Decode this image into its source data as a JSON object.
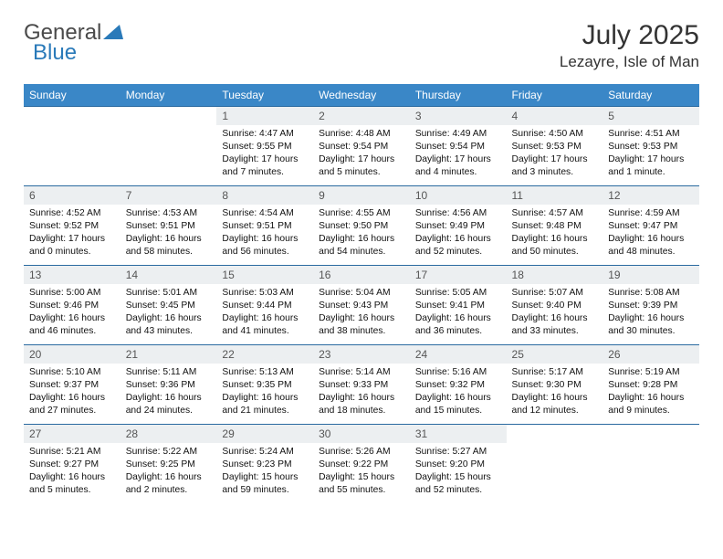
{
  "logo": {
    "word1": "General",
    "word2": "Blue",
    "brand_color": "#2a7ab9",
    "text_color": "#4a4a4a"
  },
  "title": "July 2025",
  "location": "Lezayre, Isle of Man",
  "header_bg": "#3a87c7",
  "header_fg": "#ffffff",
  "daynum_bg": "#eceff1",
  "week_border": "#2a6aa0",
  "fonts": {
    "title_size": 30,
    "location_size": 17,
    "header_size": 12,
    "daynum_size": 12,
    "body_size": 10.3
  },
  "columns": [
    "Sunday",
    "Monday",
    "Tuesday",
    "Wednesday",
    "Thursday",
    "Friday",
    "Saturday"
  ],
  "weeks": [
    [
      null,
      null,
      {
        "n": "1",
        "sunrise": "4:47 AM",
        "sunset": "9:55 PM",
        "daylight": "17 hours and 7 minutes."
      },
      {
        "n": "2",
        "sunrise": "4:48 AM",
        "sunset": "9:54 PM",
        "daylight": "17 hours and 5 minutes."
      },
      {
        "n": "3",
        "sunrise": "4:49 AM",
        "sunset": "9:54 PM",
        "daylight": "17 hours and 4 minutes."
      },
      {
        "n": "4",
        "sunrise": "4:50 AM",
        "sunset": "9:53 PM",
        "daylight": "17 hours and 3 minutes."
      },
      {
        "n": "5",
        "sunrise": "4:51 AM",
        "sunset": "9:53 PM",
        "daylight": "17 hours and 1 minute."
      }
    ],
    [
      {
        "n": "6",
        "sunrise": "4:52 AM",
        "sunset": "9:52 PM",
        "daylight": "17 hours and 0 minutes."
      },
      {
        "n": "7",
        "sunrise": "4:53 AM",
        "sunset": "9:51 PM",
        "daylight": "16 hours and 58 minutes."
      },
      {
        "n": "8",
        "sunrise": "4:54 AM",
        "sunset": "9:51 PM",
        "daylight": "16 hours and 56 minutes."
      },
      {
        "n": "9",
        "sunrise": "4:55 AM",
        "sunset": "9:50 PM",
        "daylight": "16 hours and 54 minutes."
      },
      {
        "n": "10",
        "sunrise": "4:56 AM",
        "sunset": "9:49 PM",
        "daylight": "16 hours and 52 minutes."
      },
      {
        "n": "11",
        "sunrise": "4:57 AM",
        "sunset": "9:48 PM",
        "daylight": "16 hours and 50 minutes."
      },
      {
        "n": "12",
        "sunrise": "4:59 AM",
        "sunset": "9:47 PM",
        "daylight": "16 hours and 48 minutes."
      }
    ],
    [
      {
        "n": "13",
        "sunrise": "5:00 AM",
        "sunset": "9:46 PM",
        "daylight": "16 hours and 46 minutes."
      },
      {
        "n": "14",
        "sunrise": "5:01 AM",
        "sunset": "9:45 PM",
        "daylight": "16 hours and 43 minutes."
      },
      {
        "n": "15",
        "sunrise": "5:03 AM",
        "sunset": "9:44 PM",
        "daylight": "16 hours and 41 minutes."
      },
      {
        "n": "16",
        "sunrise": "5:04 AM",
        "sunset": "9:43 PM",
        "daylight": "16 hours and 38 minutes."
      },
      {
        "n": "17",
        "sunrise": "5:05 AM",
        "sunset": "9:41 PM",
        "daylight": "16 hours and 36 minutes."
      },
      {
        "n": "18",
        "sunrise": "5:07 AM",
        "sunset": "9:40 PM",
        "daylight": "16 hours and 33 minutes."
      },
      {
        "n": "19",
        "sunrise": "5:08 AM",
        "sunset": "9:39 PM",
        "daylight": "16 hours and 30 minutes."
      }
    ],
    [
      {
        "n": "20",
        "sunrise": "5:10 AM",
        "sunset": "9:37 PM",
        "daylight": "16 hours and 27 minutes."
      },
      {
        "n": "21",
        "sunrise": "5:11 AM",
        "sunset": "9:36 PM",
        "daylight": "16 hours and 24 minutes."
      },
      {
        "n": "22",
        "sunrise": "5:13 AM",
        "sunset": "9:35 PM",
        "daylight": "16 hours and 21 minutes."
      },
      {
        "n": "23",
        "sunrise": "5:14 AM",
        "sunset": "9:33 PM",
        "daylight": "16 hours and 18 minutes."
      },
      {
        "n": "24",
        "sunrise": "5:16 AM",
        "sunset": "9:32 PM",
        "daylight": "16 hours and 15 minutes."
      },
      {
        "n": "25",
        "sunrise": "5:17 AM",
        "sunset": "9:30 PM",
        "daylight": "16 hours and 12 minutes."
      },
      {
        "n": "26",
        "sunrise": "5:19 AM",
        "sunset": "9:28 PM",
        "daylight": "16 hours and 9 minutes."
      }
    ],
    [
      {
        "n": "27",
        "sunrise": "5:21 AM",
        "sunset": "9:27 PM",
        "daylight": "16 hours and 5 minutes."
      },
      {
        "n": "28",
        "sunrise": "5:22 AM",
        "sunset": "9:25 PM",
        "daylight": "16 hours and 2 minutes."
      },
      {
        "n": "29",
        "sunrise": "5:24 AM",
        "sunset": "9:23 PM",
        "daylight": "15 hours and 59 minutes."
      },
      {
        "n": "30",
        "sunrise": "5:26 AM",
        "sunset": "9:22 PM",
        "daylight": "15 hours and 55 minutes."
      },
      {
        "n": "31",
        "sunrise": "5:27 AM",
        "sunset": "9:20 PM",
        "daylight": "15 hours and 52 minutes."
      },
      null,
      null
    ]
  ],
  "labels": {
    "sunrise": "Sunrise: ",
    "sunset": "Sunset: ",
    "daylight": "Daylight: "
  }
}
